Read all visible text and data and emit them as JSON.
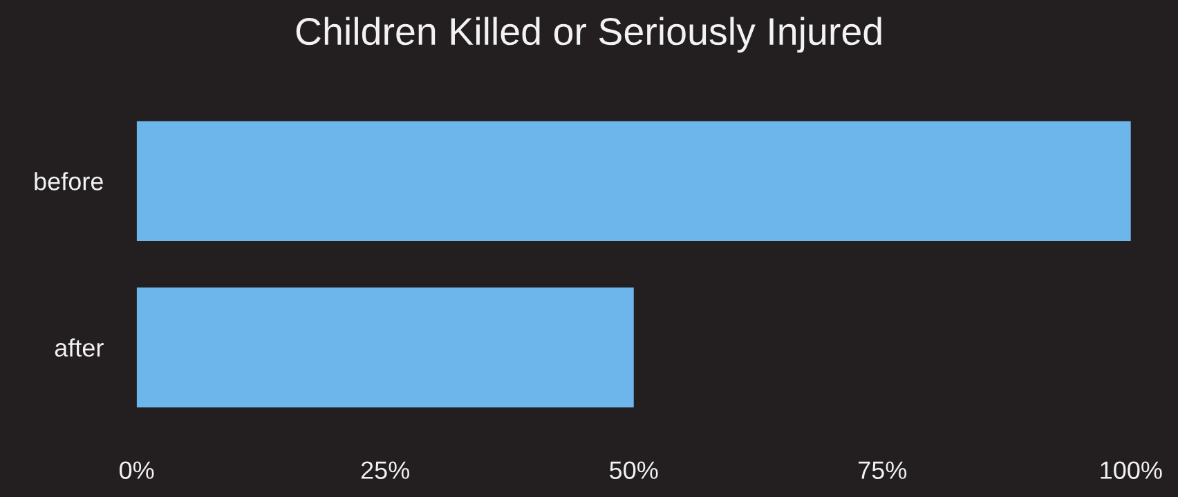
{
  "chart_data": {
    "type": "bar",
    "orientation": "horizontal",
    "title": "Children Killed or Seriously Injured",
    "categories": [
      "before",
      "after"
    ],
    "values": [
      100,
      50
    ],
    "color": "#6db6ec",
    "xlim": [
      0,
      100
    ],
    "xticks": [
      {
        "value": 0,
        "label": "0%"
      },
      {
        "value": 25,
        "label": "25%"
      },
      {
        "value": 50,
        "label": "50%"
      },
      {
        "value": 75,
        "label": "75%"
      },
      {
        "value": 100,
        "label": "100%"
      }
    ],
    "grid": false,
    "legend": false
  }
}
